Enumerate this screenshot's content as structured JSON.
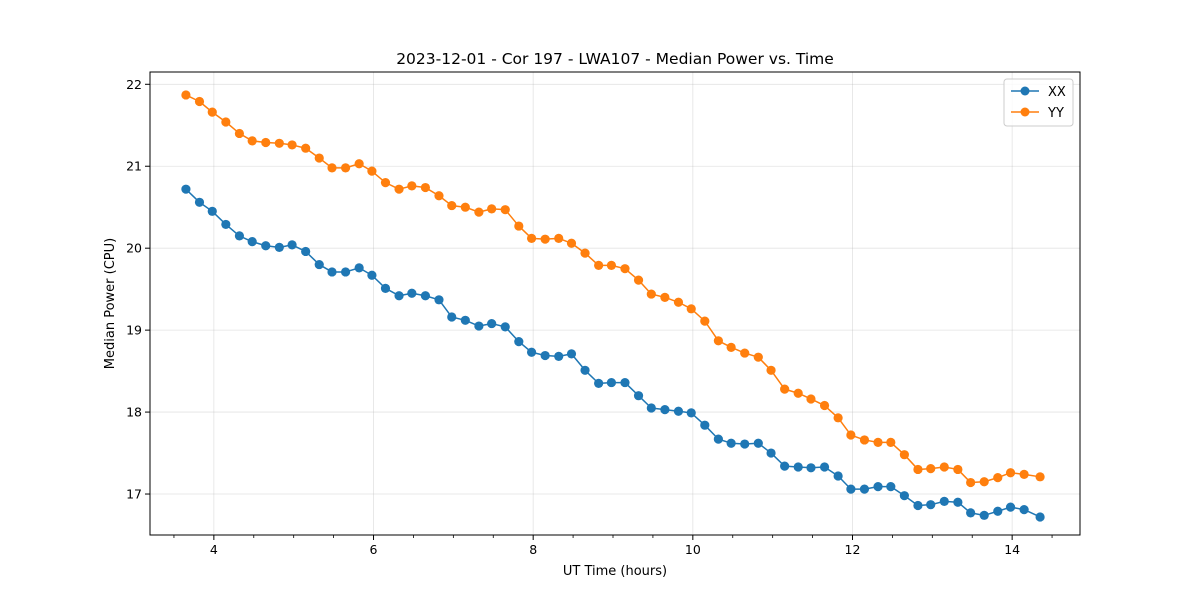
{
  "chart_data": {
    "type": "line",
    "title": "2023-12-01 - Cor 197 - LWA107 - Median Power vs. Time",
    "xlabel": "UT Time (hours)",
    "ylabel": "Median Power (CPU)",
    "xlim": [
      3.2,
      14.85
    ],
    "ylim": [
      16.5,
      22.15
    ],
    "xticks": [
      4,
      6,
      8,
      10,
      12,
      14
    ],
    "xtick_labels": [
      "4",
      "6",
      "8",
      "10",
      "12",
      "14"
    ],
    "yticks": [
      17,
      18,
      19,
      20,
      21,
      22
    ],
    "ytick_labels": [
      "17",
      "18",
      "19",
      "20",
      "21",
      "22"
    ],
    "grid": true,
    "legend_position": "top-right",
    "x": [
      3.65,
      3.82,
      3.98,
      4.15,
      4.32,
      4.48,
      4.65,
      4.82,
      4.98,
      5.15,
      5.32,
      5.48,
      5.65,
      5.82,
      5.98,
      6.15,
      6.32,
      6.48,
      6.65,
      6.82,
      6.98,
      7.15,
      7.32,
      7.48,
      7.65,
      7.82,
      7.98,
      8.15,
      8.32,
      8.48,
      8.65,
      8.82,
      8.98,
      9.15,
      9.32,
      9.48,
      9.65,
      9.82,
      9.98,
      10.15,
      10.32,
      10.48,
      10.65,
      10.82,
      10.98,
      11.15,
      11.32,
      11.48,
      11.65,
      11.82,
      11.98,
      12.15,
      12.32,
      12.48,
      12.65,
      12.82,
      12.98,
      13.15,
      13.32,
      13.48,
      13.65,
      13.82,
      13.98,
      14.15,
      14.35
    ],
    "series": [
      {
        "name": "XX",
        "color": "#1f77b4",
        "values": [
          20.72,
          20.56,
          20.45,
          20.29,
          20.15,
          20.08,
          20.03,
          20.01,
          20.04,
          19.96,
          19.8,
          19.71,
          19.71,
          19.76,
          19.67,
          19.51,
          19.42,
          19.45,
          19.42,
          19.37,
          19.16,
          19.12,
          19.05,
          19.08,
          19.04,
          18.86,
          18.73,
          18.69,
          18.68,
          18.71,
          18.51,
          18.35,
          18.36,
          18.36,
          18.2,
          18.05,
          18.03,
          18.01,
          17.99,
          17.84,
          17.67,
          17.62,
          17.61,
          17.62,
          17.5,
          17.34,
          17.33,
          17.32,
          17.33,
          17.22,
          17.06,
          17.06,
          17.09,
          17.09,
          16.98,
          16.86,
          16.87,
          16.91,
          16.9,
          16.77,
          16.74,
          16.79,
          16.84,
          16.81,
          16.72
        ]
      },
      {
        "name": "YY",
        "color": "#ff7f0e",
        "values": [
          21.87,
          21.79,
          21.66,
          21.54,
          21.4,
          21.31,
          21.29,
          21.28,
          21.26,
          21.22,
          21.1,
          20.98,
          20.98,
          21.03,
          20.94,
          20.8,
          20.72,
          20.76,
          20.74,
          20.64,
          20.52,
          20.5,
          20.44,
          20.48,
          20.47,
          20.27,
          20.12,
          20.11,
          20.12,
          20.06,
          19.94,
          19.79,
          19.79,
          19.75,
          19.61,
          19.44,
          19.4,
          19.34,
          19.26,
          19.11,
          18.87,
          18.79,
          18.72,
          18.67,
          18.51,
          18.28,
          18.23,
          18.16,
          18.08,
          17.93,
          17.72,
          17.66,
          17.63,
          17.63,
          17.48,
          17.3,
          17.31,
          17.33,
          17.3,
          17.14,
          17.15,
          17.2,
          17.26,
          17.24,
          17.21
        ]
      }
    ]
  }
}
